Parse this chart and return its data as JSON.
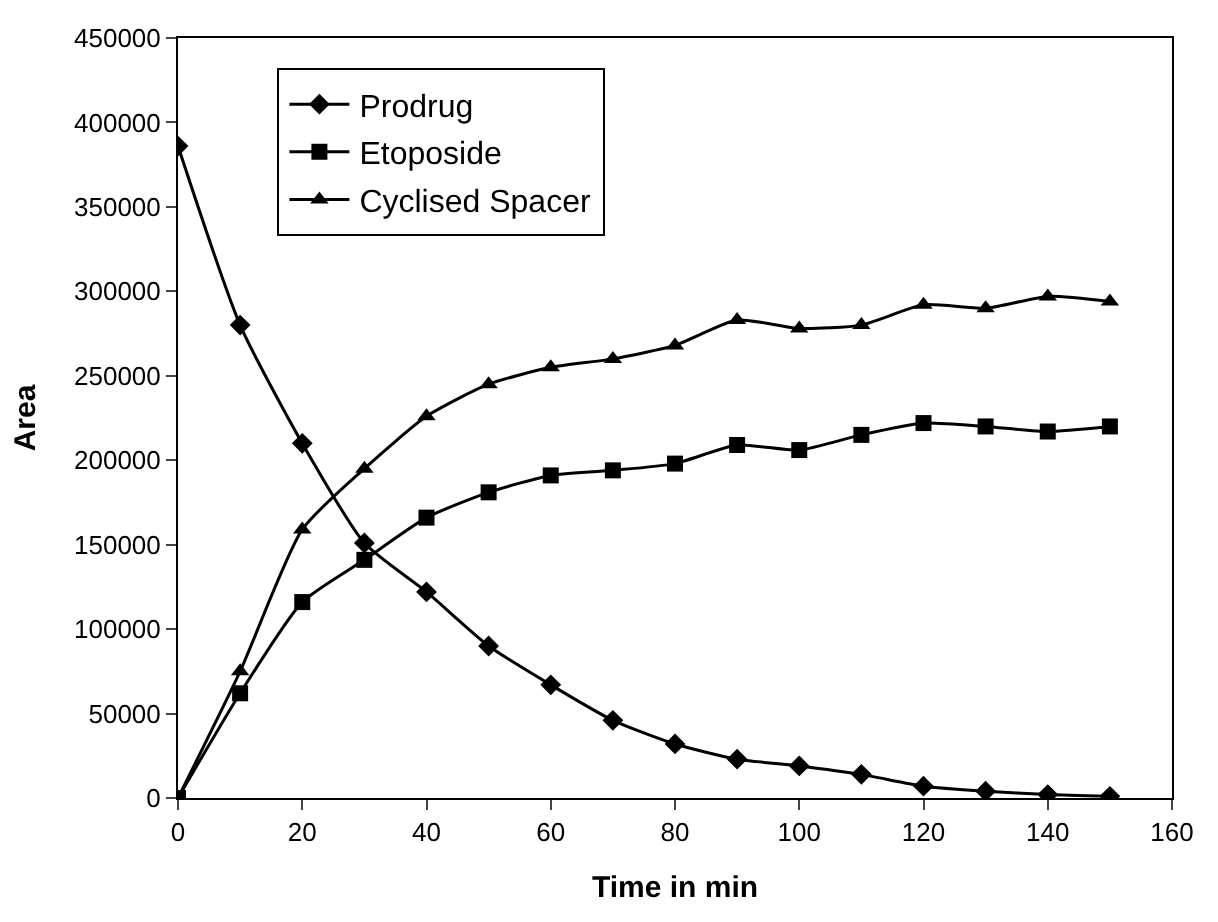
{
  "chart_data": {
    "type": "line",
    "xlabel": "Time in min",
    "ylabel": "Area",
    "x": [
      0,
      10,
      20,
      30,
      40,
      50,
      60,
      70,
      80,
      90,
      100,
      110,
      120,
      130,
      140,
      150
    ],
    "series": [
      {
        "name": "Prodrug",
        "color": "#000000",
        "marker": "diamond",
        "values": [
          386000,
          280000,
          210000,
          151000,
          122000,
          90000,
          67000,
          46000,
          32000,
          23000,
          19000,
          14000,
          7000,
          4000,
          2000,
          1000
        ]
      },
      {
        "name": "Etoposide",
        "color": "#000000",
        "marker": "square",
        "values": [
          0,
          62000,
          116000,
          141000,
          166000,
          181000,
          191000,
          194000,
          198000,
          209000,
          206000,
          215000,
          222000,
          220000,
          217000,
          220000
        ]
      },
      {
        "name": "Cyclised Spacer",
        "color": "#000000",
        "marker": "triangle",
        "values": [
          0,
          75000,
          159000,
          195000,
          226000,
          245000,
          255000,
          260000,
          268000,
          283000,
          278000,
          280000,
          292000,
          290000,
          297000,
          294000
        ]
      }
    ],
    "xlim": [
      0,
      160
    ],
    "xticks": [
      0,
      20,
      40,
      60,
      80,
      100,
      120,
      140,
      160
    ],
    "ylim": [
      0,
      450000
    ],
    "yticks": [
      0,
      50000,
      100000,
      150000,
      200000,
      250000,
      300000,
      350000,
      400000,
      450000
    ],
    "legend": "top left",
    "line_style": "solid"
  }
}
